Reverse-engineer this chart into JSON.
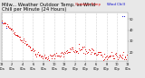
{
  "title": "Milw... Weather Outdoor Temp. vs Wind\nChill per Minute (24 Hours)",
  "bg_color": "#e8e8e8",
  "plot_bg_color": "#ffffff",
  "grid_color": "#aaaaaa",
  "temp_color": "#dd0000",
  "wind_color": "#0000cc",
  "ylim": [
    12,
    56
  ],
  "xlim": [
    0,
    1440
  ],
  "title_fontsize": 3.8,
  "tick_fontsize": 2.5,
  "legend_fontsize": 2.8,
  "dot_size": 0.4,
  "wind_dot_size": 0.6
}
